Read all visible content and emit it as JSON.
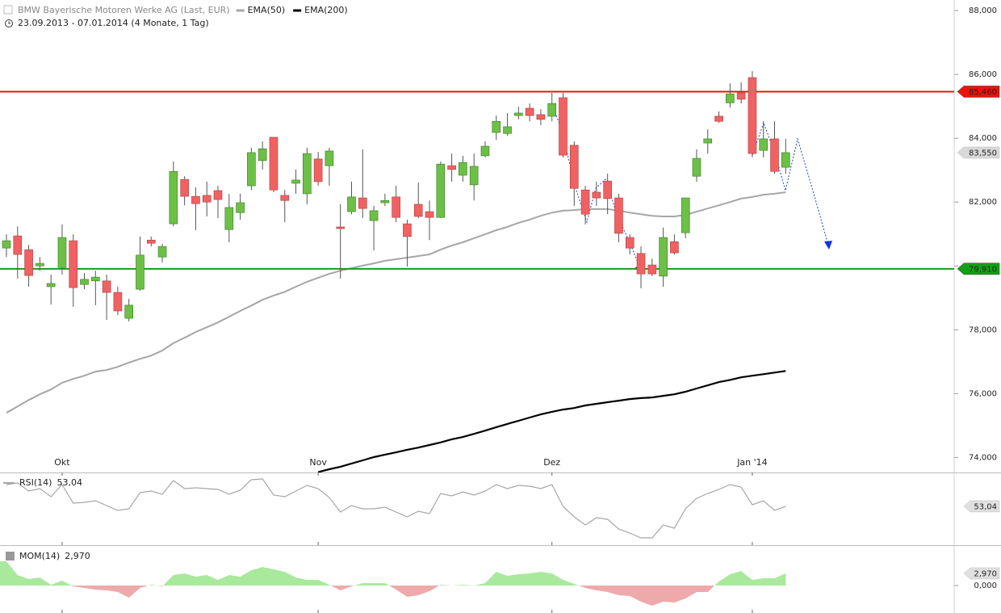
{
  "chart_data": [
    {
      "type": "candlestick",
      "title": "BMW Bayerische Motoren Werke AG (Last, EUR)",
      "subtitle": "23.09.2013 - 07.01.2014 (4 Monate, 1 Tag)",
      "categories": [
        null,
        null,
        null,
        null,
        null,
        "Okt",
        null,
        null,
        null,
        null,
        null,
        null,
        null,
        null,
        null,
        null,
        null,
        null,
        null,
        null,
        null,
        null,
        null,
        null,
        null,
        null,
        null,
        null,
        "Nov",
        null,
        null,
        null,
        null,
        null,
        null,
        null,
        null,
        null,
        null,
        null,
        null,
        null,
        null,
        null,
        null,
        null,
        null,
        null,
        null,
        "Dez",
        null,
        null,
        null,
        null,
        null,
        null,
        null,
        null,
        null,
        null,
        null,
        null,
        null,
        null,
        null,
        null,
        null,
        "Jan '14",
        null,
        null,
        null
      ],
      "open": [
        80560,
        80940,
        80510,
        80000,
        79350,
        79950,
        80790,
        79420,
        79530,
        79530,
        79170,
        78360,
        79270,
        80810,
        80280,
        81320,
        82710,
        82180,
        82210,
        82360,
        81140,
        81670,
        82510,
        83300,
        84030,
        82210,
        82590,
        82260,
        83350,
        83140,
        81220,
        81700,
        82130,
        81420,
        81980,
        82160,
        81320,
        81930,
        81700,
        81520,
        83140,
        82840,
        82540,
        83450,
        84180,
        84150,
        84710,
        84940,
        84740,
        84690,
        85270,
        83780,
        82380,
        82310,
        82660,
        82130,
        80890,
        80390,
        80030,
        79680,
        80760,
        81040,
        82810,
        83850,
        84690,
        85110,
        85420,
        85900,
        83620,
        83980,
        83090
      ],
      "high": [
        80990,
        81240,
        80660,
        80280,
        79730,
        81300,
        80990,
        79780,
        79850,
        79730,
        79350,
        78970,
        80920,
        80920,
        80690,
        83270,
        82810,
        82460,
        82640,
        82510,
        82260,
        82260,
        83700,
        83900,
        84030,
        82380,
        83020,
        83700,
        83570,
        83700,
        81930,
        82640,
        83650,
        81880,
        82260,
        82510,
        81450,
        82610,
        82050,
        83270,
        83520,
        83450,
        83520,
        83900,
        84710,
        84790,
        84990,
        85090,
        84910,
        85420,
        85420,
        83900,
        82510,
        82640,
        82890,
        82260,
        80990,
        80610,
        80230,
        81200,
        80990,
        82130,
        83650,
        84280,
        84840,
        85720,
        85750,
        86100,
        84530,
        84530,
        83980
      ],
      "low": [
        80280,
        79600,
        79350,
        79850,
        78790,
        79730,
        78720,
        79270,
        78770,
        78310,
        78460,
        78260,
        79220,
        80610,
        80110,
        81240,
        81900,
        81120,
        81550,
        81500,
        80740,
        81450,
        82380,
        83020,
        82310,
        81370,
        82260,
        81930,
        82510,
        82510,
        79600,
        81620,
        81500,
        80490,
        81880,
        81370,
        79980,
        81500,
        80810,
        81500,
        82640,
        82640,
        82050,
        83400,
        83950,
        84080,
        84590,
        84530,
        84410,
        84530,
        83400,
        81880,
        81300,
        81880,
        81620,
        80740,
        80360,
        79300,
        79680,
        79350,
        80360,
        80870,
        82640,
        83520,
        84480,
        84960,
        85090,
        83400,
        83400,
        82890,
        82890
      ],
      "close": [
        80790,
        80360,
        79700,
        80080,
        79450,
        80890,
        79320,
        79580,
        79650,
        79170,
        78590,
        78770,
        80340,
        80710,
        80610,
        82960,
        82180,
        81950,
        82000,
        82080,
        81830,
        81980,
        83550,
        83670,
        82380,
        82050,
        82690,
        83520,
        82640,
        83600,
        81170,
        82160,
        81800,
        81730,
        82050,
        81520,
        80920,
        81550,
        81520,
        83190,
        83020,
        83240,
        83120,
        83750,
        84530,
        84360,
        84790,
        84710,
        84590,
        85090,
        83470,
        82430,
        81620,
        82130,
        82110,
        81020,
        80560,
        79750,
        79750,
        80890,
        80410,
        82130,
        83370,
        83980,
        84530,
        85390,
        85220,
        83520,
        83980,
        82960,
        83550
      ],
      "last_label": "83,550",
      "up_color": "#6cc046",
      "down_color": "#f06262",
      "series": [
        {
          "name": "EMA(50)",
          "color": "#a6a6a6",
          "values": [
            75400,
            75600,
            75800,
            75980,
            76130,
            76340,
            76460,
            76560,
            76690,
            76740,
            76840,
            76970,
            77090,
            77190,
            77350,
            77580,
            77750,
            77930,
            78080,
            78230,
            78410,
            78590,
            78760,
            78940,
            79070,
            79190,
            79350,
            79500,
            79630,
            79750,
            79850,
            79930,
            80010,
            80080,
            80160,
            80210,
            80260,
            80310,
            80360,
            80510,
            80640,
            80740,
            80870,
            80990,
            81120,
            81220,
            81350,
            81450,
            81570,
            81670,
            81730,
            81750,
            81780,
            81780,
            81780,
            81730,
            81670,
            81620,
            81570,
            81550,
            81550,
            81600,
            81700,
            81800,
            81900,
            82000,
            82110,
            82160,
            82230,
            82260,
            82310
          ]
        },
        {
          "name": "EMA(200)",
          "color": "#000000",
          "values": [
            null,
            null,
            null,
            null,
            null,
            null,
            null,
            null,
            null,
            null,
            null,
            null,
            null,
            null,
            null,
            null,
            null,
            null,
            null,
            null,
            null,
            null,
            null,
            null,
            null,
            null,
            null,
            null,
            73540,
            73630,
            73710,
            73810,
            73910,
            74010,
            74090,
            74160,
            74240,
            74310,
            74390,
            74470,
            74570,
            74640,
            74740,
            74840,
            74950,
            75050,
            75150,
            75250,
            75350,
            75430,
            75500,
            75550,
            75630,
            75680,
            75730,
            75780,
            75830,
            75860,
            75880,
            75930,
            75980,
            76060,
            76160,
            76260,
            76360,
            76430,
            76510,
            76560,
            76610,
            76660,
            76710
          ]
        }
      ],
      "levels": [
        {
          "value": 85460,
          "label": "85,460",
          "color": "#e8140a"
        },
        {
          "value": 79910,
          "label": "79,910",
          "color": "#14a014"
        }
      ],
      "ylim": [
        73530,
        88330
      ],
      "yticks": [
        {
          "value": 74000,
          "label": "74,000"
        },
        {
          "value": 76000,
          "label": "76,000"
        },
        {
          "value": 78000,
          "label": "78,000"
        },
        {
          "value": 80000,
          "label": "80,000"
        },
        {
          "value": 82000,
          "label": "82,000"
        },
        {
          "value": 84000,
          "label": "84,000"
        },
        {
          "value": 86000,
          "label": "86,000"
        },
        {
          "value": 88000,
          "label": "88,000"
        }
      ]
    },
    {
      "type": "line",
      "series": [
        {
          "name": "RSI(14)",
          "color": "#a6a6a6",
          "value_label": "53,04",
          "values": [
            66.5,
            67.5,
            62.5,
            64,
            59,
            66.5,
            55,
            55.5,
            56.5,
            53.5,
            50.5,
            51.5,
            61.5,
            62.5,
            60.5,
            69,
            64,
            64.5,
            64,
            63.5,
            60.5,
            63,
            69.5,
            70,
            60,
            59,
            62.5,
            66,
            64,
            58.5,
            49.5,
            53.5,
            51.5,
            51.5,
            52.5,
            49.5,
            46.5,
            50,
            48.5,
            61,
            59.5,
            62,
            60,
            62.5,
            66.5,
            64,
            66,
            65.5,
            64,
            66.5,
            53,
            46.5,
            41.5,
            46,
            45,
            39,
            36.5,
            33.5,
            33.5,
            41.5,
            39.5,
            51.5,
            58,
            61,
            63.5,
            66.5,
            65,
            54,
            56.5,
            50.5,
            53.04
          ]
        }
      ],
      "ylim": [
        29,
        72.5
      ]
    },
    {
      "type": "area",
      "series": [
        {
          "name": "MOM(14)",
          "color": "#a9e99c",
          "negative_color": "#eeaaaa",
          "value_label": "2,970",
          "values": [
            5.94,
            2.57,
            1.58,
            1.98,
            0.2,
            1.19,
            -0.2,
            -0.59,
            -0.99,
            -1.19,
            -1.58,
            -2.97,
            -0.59,
            0.2,
            -0.2,
            2.57,
            2.97,
            2.18,
            2.57,
            1.39,
            2.57,
            2.18,
            3.76,
            4.55,
            3.96,
            3.37,
            1.98,
            1.39,
            1.39,
            0.2,
            -1.19,
            -0.2,
            0.59,
            0.59,
            0.59,
            -0.99,
            -2.77,
            -2.38,
            -1.39,
            0.2,
            0,
            0.2,
            0,
            0.59,
            3.37,
            2.38,
            2.77,
            2.97,
            3.37,
            2.97,
            1.39,
            0.4,
            -0.59,
            -1.19,
            -1.58,
            -2.38,
            -2.57,
            -3.96,
            -4.95,
            -3.96,
            -4.16,
            -3.17,
            -1.58,
            -1.58,
            0.99,
            2.77,
            3.56,
            1.39,
            1.78,
            1.78,
            2.97
          ]
        }
      ],
      "ylim": [
        -6.73,
        9.3
      ],
      "yticks": [
        {
          "value": 0,
          "label": "0,000"
        }
      ]
    }
  ]
}
